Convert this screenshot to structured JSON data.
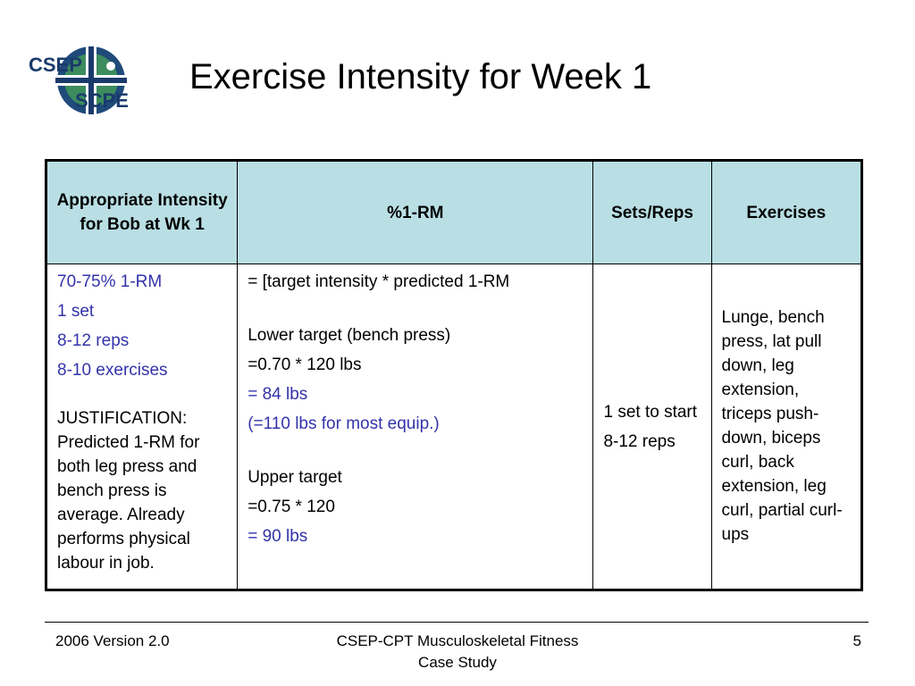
{
  "logo": {
    "text_top": "CSEP",
    "text_bottom": "SCPE",
    "colors": {
      "navy": "#1a3a6b",
      "green": "#3c8c5e",
      "ring": "#1f4a7a"
    }
  },
  "title": "Exercise Intensity for Week 1",
  "table": {
    "headers": [
      "Appropriate Intensity for Bob at Wk 1",
      "%1-RM",
      "Sets/Reps",
      "Exercises"
    ],
    "col1": {
      "items": [
        "70-75% 1-RM",
        "1 set",
        "8-12 reps",
        "8-10 exercises"
      ],
      "justification": "JUSTIFICATION: Predicted 1-RM for both leg press and bench press is average.  Already performs physical labour in job."
    },
    "col2": {
      "formula": "= [target intensity * predicted 1-RM",
      "lower_heading": "Lower target (bench press)",
      "lower_calc": "=0.70 * 120 lbs",
      "lower_result": "= 84 lbs",
      "lower_note": "(=110 lbs for most equip.)",
      "upper_heading": "Upper target",
      "upper_calc": "=0.75 * 120",
      "upper_result": "= 90 lbs"
    },
    "col3": {
      "sets": "1 set to start",
      "reps": "8-12 reps"
    },
    "col4": {
      "exercises": "Lunge, bench press, lat pull down, leg extension, triceps push-down, biceps curl, back extension, leg curl, partial curl-ups"
    },
    "colors": {
      "header_bg": "#b9dfe4",
      "highlight": "#3333aa"
    }
  },
  "footer": {
    "left": "2006 Version 2.0",
    "center": "CSEP-CPT Musculoskeletal Fitness Case Study",
    "page_number": "5"
  }
}
